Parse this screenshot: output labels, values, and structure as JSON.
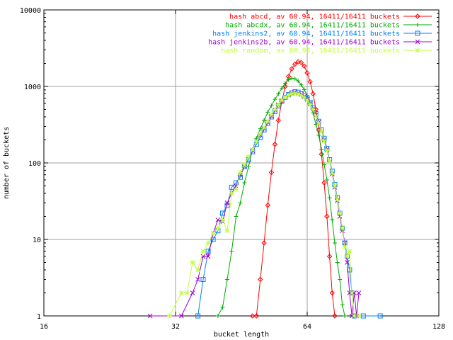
{
  "chart_data": {
    "type": "line",
    "title": "",
    "xlabel": "bucket length",
    "ylabel": "number of buckets",
    "x_scale": "log2",
    "y_scale": "log10",
    "xlim": [
      16,
      128
    ],
    "ylim": [
      1,
      10000
    ],
    "x_ticks": [
      "16",
      "32",
      "64",
      "128"
    ],
    "y_ticks": [
      "1",
      "10",
      "100",
      "1000",
      "10000"
    ],
    "grid": true,
    "legend_position": "top-right",
    "series": [
      {
        "name": "hash abcd, av 60.94, 16411/16411 buckets",
        "color": "#ff0000",
        "marker": "diamond",
        "points": [
          [
            48,
            1
          ],
          [
            49,
            1
          ],
          [
            50,
            3
          ],
          [
            51,
            9
          ],
          [
            52,
            28
          ],
          [
            53,
            75
          ],
          [
            54,
            175
          ],
          [
            55,
            360
          ],
          [
            56,
            640
          ],
          [
            57,
            1000
          ],
          [
            58,
            1350
          ],
          [
            59,
            1700
          ],
          [
            60,
            1950
          ],
          [
            61,
            2100
          ],
          [
            62,
            2050
          ],
          [
            63,
            1850
          ],
          [
            64,
            1500
          ],
          [
            65,
            1150
          ],
          [
            66,
            800
          ],
          [
            67,
            500
          ],
          [
            68,
            270
          ],
          [
            69,
            130
          ],
          [
            70,
            55
          ],
          [
            71,
            20
          ],
          [
            72,
            6
          ],
          [
            73,
            2
          ],
          [
            74,
            1
          ]
        ]
      },
      {
        "name": "hash abcdx, av 60.94, 16411/16411 buckets",
        "color": "#00aa00",
        "marker": "plus",
        "points": [
          [
            40,
            1
          ],
          [
            41,
            1.3
          ],
          [
            42,
            3
          ],
          [
            43,
            7
          ],
          [
            44,
            20
          ],
          [
            45,
            30
          ],
          [
            46,
            55
          ],
          [
            47,
            90
          ],
          [
            48,
            150
          ],
          [
            49,
            210
          ],
          [
            50,
            280
          ],
          [
            51,
            360
          ],
          [
            52,
            460
          ],
          [
            53,
            560
          ],
          [
            54,
            680
          ],
          [
            55,
            800
          ],
          [
            56,
            950
          ],
          [
            57,
            1100
          ],
          [
            58,
            1220
          ],
          [
            59,
            1280
          ],
          [
            60,
            1260
          ],
          [
            61,
            1180
          ],
          [
            62,
            1050
          ],
          [
            63,
            910
          ],
          [
            64,
            760
          ],
          [
            65,
            600
          ],
          [
            66,
            450
          ],
          [
            67,
            320
          ],
          [
            68,
            230
          ],
          [
            69,
            150
          ],
          [
            70,
            95
          ],
          [
            71,
            60
          ],
          [
            72,
            35
          ],
          [
            73,
            18
          ],
          [
            74,
            9
          ],
          [
            75,
            5
          ],
          [
            76,
            3
          ],
          [
            77,
            1.4
          ],
          [
            78,
            1
          ]
        ]
      },
      {
        "name": "hash jenkins2, av 60.94, 16411/16411 buckets",
        "color": "#0080ff",
        "marker": "square",
        "points": [
          [
            36,
            1
          ],
          [
            37,
            3
          ],
          [
            38,
            7
          ],
          [
            39,
            10
          ],
          [
            40,
            13
          ],
          [
            41,
            22
          ],
          [
            42,
            28
          ],
          [
            43,
            48
          ],
          [
            44,
            55
          ],
          [
            45,
            65
          ],
          [
            46,
            90
          ],
          [
            47,
            110
          ],
          [
            48,
            140
          ],
          [
            49,
            175
          ],
          [
            50,
            215
          ],
          [
            51,
            270
          ],
          [
            52,
            330
          ],
          [
            53,
            400
          ],
          [
            54,
            470
          ],
          [
            55,
            560
          ],
          [
            56,
            640
          ],
          [
            57,
            720
          ],
          [
            58,
            780
          ],
          [
            59,
            820
          ],
          [
            60,
            850
          ],
          [
            61,
            840
          ],
          [
            62,
            800
          ],
          [
            63,
            760
          ],
          [
            64,
            700
          ],
          [
            65,
            620
          ],
          [
            66,
            530
          ],
          [
            67,
            440
          ],
          [
            68,
            350
          ],
          [
            69,
            270
          ],
          [
            70,
            210
          ],
          [
            71,
            155
          ],
          [
            72,
            110
          ],
          [
            73,
            78
          ],
          [
            74,
            52
          ],
          [
            75,
            35
          ],
          [
            76,
            22
          ],
          [
            77,
            14
          ],
          [
            78,
            9
          ],
          [
            79,
            6
          ],
          [
            80,
            4
          ],
          [
            81,
            2
          ],
          [
            82,
            1
          ],
          [
            86,
            1
          ],
          [
            94,
            1
          ]
        ]
      },
      {
        "name": "hash jenkins2b, av 60.94, 16411/16411 buckets",
        "color": "#a000d0",
        "marker": "cross",
        "points": [
          [
            28,
            1
          ],
          [
            33,
            1
          ],
          [
            35,
            2
          ],
          [
            36,
            3
          ],
          [
            37,
            6
          ],
          [
            38,
            6
          ],
          [
            39,
            12
          ],
          [
            40,
            18
          ],
          [
            41,
            17
          ],
          [
            42,
            30
          ],
          [
            43,
            40
          ],
          [
            44,
            50
          ],
          [
            45,
            70
          ],
          [
            46,
            90
          ],
          [
            47,
            120
          ],
          [
            48,
            145
          ],
          [
            49,
            190
          ],
          [
            50,
            230
          ],
          [
            51,
            280
          ],
          [
            52,
            340
          ],
          [
            53,
            410
          ],
          [
            54,
            490
          ],
          [
            55,
            570
          ],
          [
            56,
            650
          ],
          [
            57,
            720
          ],
          [
            58,
            780
          ],
          [
            59,
            810
          ],
          [
            60,
            830
          ],
          [
            61,
            820
          ],
          [
            62,
            790
          ],
          [
            63,
            740
          ],
          [
            64,
            680
          ],
          [
            65,
            600
          ],
          [
            66,
            510
          ],
          [
            67,
            420
          ],
          [
            68,
            340
          ],
          [
            69,
            260
          ],
          [
            70,
            200
          ],
          [
            71,
            150
          ],
          [
            72,
            105
          ],
          [
            73,
            72
          ],
          [
            74,
            48
          ],
          [
            75,
            32
          ],
          [
            76,
            20
          ],
          [
            77,
            13
          ],
          [
            78,
            9
          ],
          [
            79,
            5
          ],
          [
            80,
            2
          ],
          [
            81,
            1
          ],
          [
            82,
            2
          ],
          [
            83,
            1
          ],
          [
            84,
            2
          ]
        ]
      },
      {
        "name": "hash random, av 60.94, 16411/16411 buckets",
        "color": "#c0ff40",
        "marker": "star",
        "points": [
          [
            31,
            1
          ],
          [
            33,
            2
          ],
          [
            34,
            2
          ],
          [
            35,
            5
          ],
          [
            36,
            4
          ],
          [
            37,
            7
          ],
          [
            38,
            9
          ],
          [
            39,
            12
          ],
          [
            40,
            14
          ],
          [
            41,
            18
          ],
          [
            42,
            13
          ],
          [
            43,
            40
          ],
          [
            44,
            45
          ],
          [
            45,
            75
          ],
          [
            46,
            95
          ],
          [
            47,
            120
          ],
          [
            48,
            150
          ],
          [
            49,
            190
          ],
          [
            50,
            240
          ],
          [
            51,
            290
          ],
          [
            52,
            350
          ],
          [
            53,
            430
          ],
          [
            54,
            500
          ],
          [
            55,
            580
          ],
          [
            56,
            660
          ],
          [
            57,
            720
          ],
          [
            58,
            770
          ],
          [
            59,
            800
          ],
          [
            60,
            810
          ],
          [
            61,
            800
          ],
          [
            62,
            770
          ],
          [
            63,
            720
          ],
          [
            64,
            660
          ],
          [
            65,
            580
          ],
          [
            66,
            500
          ],
          [
            67,
            410
          ],
          [
            68,
            330
          ],
          [
            69,
            260
          ],
          [
            70,
            195
          ],
          [
            71,
            145
          ],
          [
            72,
            105
          ],
          [
            73,
            74
          ],
          [
            74,
            50
          ],
          [
            75,
            33
          ],
          [
            76,
            22
          ],
          [
            77,
            14
          ],
          [
            78,
            8
          ],
          [
            79,
            6
          ],
          [
            80,
            7
          ],
          [
            81,
            2
          ],
          [
            82,
            1
          ],
          [
            84,
            1
          ]
        ]
      }
    ]
  }
}
